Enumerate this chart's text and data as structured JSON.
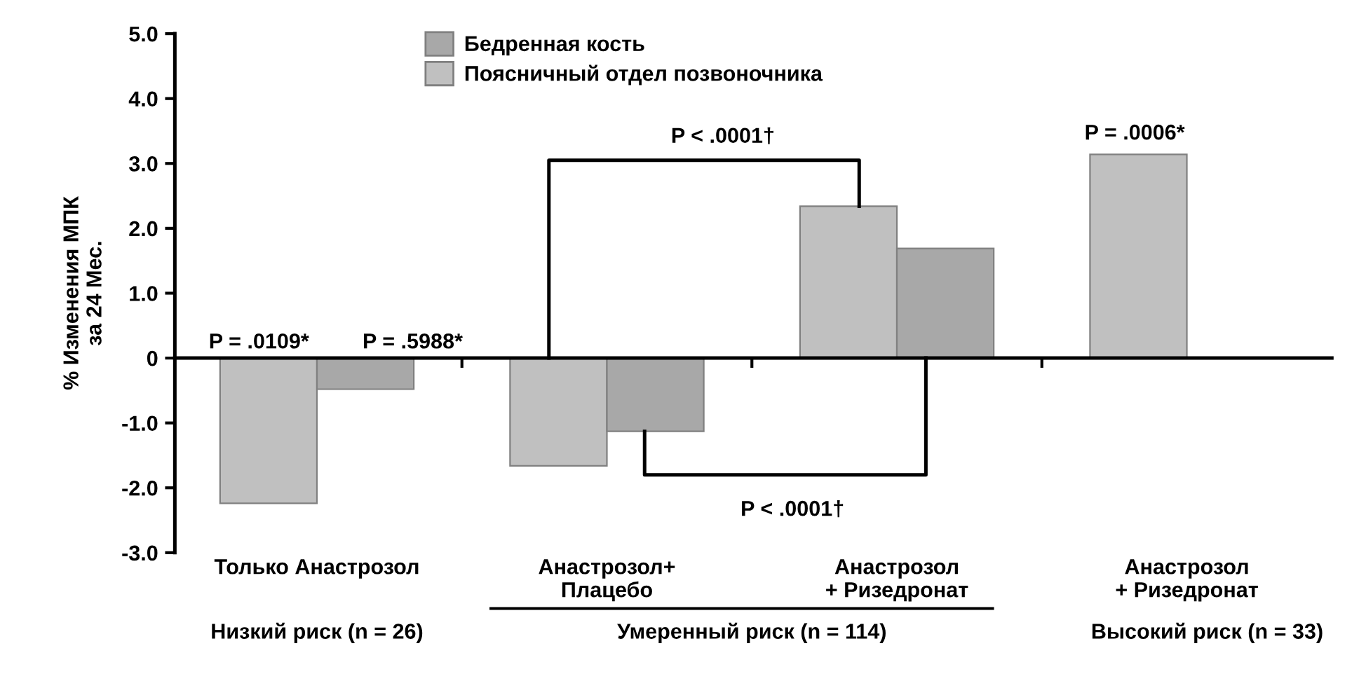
{
  "chart_data": {
    "type": "bar",
    "ylabel": "% Изменения МПК\nза 24 Мес.",
    "categories": [
      "Только Анастрозол",
      "Анастрозол+\nПлацебо",
      "Анастрозол\n+ Ризедронат",
      "Анастрозол\n+ Ризедронат"
    ],
    "series": [
      {
        "name": "Поясничный отдел позвоночника",
        "color": "#c0c0c0",
        "values": [
          -2.24,
          -1.66,
          2.34,
          3.14
        ]
      },
      {
        "name": "Бедренная кость",
        "color": "#a8a8a8",
        "values": [
          -0.48,
          -1.13,
          1.69,
          null
        ]
      }
    ],
    "ylim": [
      -3,
      5
    ],
    "yticks": [
      {
        "value": -3,
        "label": "-3.0"
      },
      {
        "value": -2,
        "label": "-2.0"
      },
      {
        "value": -1,
        "label": "-1.0"
      },
      0,
      {
        "value": 1,
        "label": "1.0"
      },
      {
        "value": 2,
        "label": "2.0"
      },
      {
        "value": 3,
        "label": "3.0"
      },
      {
        "value": 4,
        "label": "4.0"
      },
      {
        "value": 5,
        "label": "5.0"
      }
    ],
    "annotations": [
      "P = .0109*",
      "P = .5988*",
      "P < .0001†",
      "P < .0001†",
      "P = .0006*",
      "Низкий риск (n = 26)",
      "Умеренный риск (n = 114)",
      "Высокий риск (n = 33)"
    ],
    "legend": "top left"
  }
}
